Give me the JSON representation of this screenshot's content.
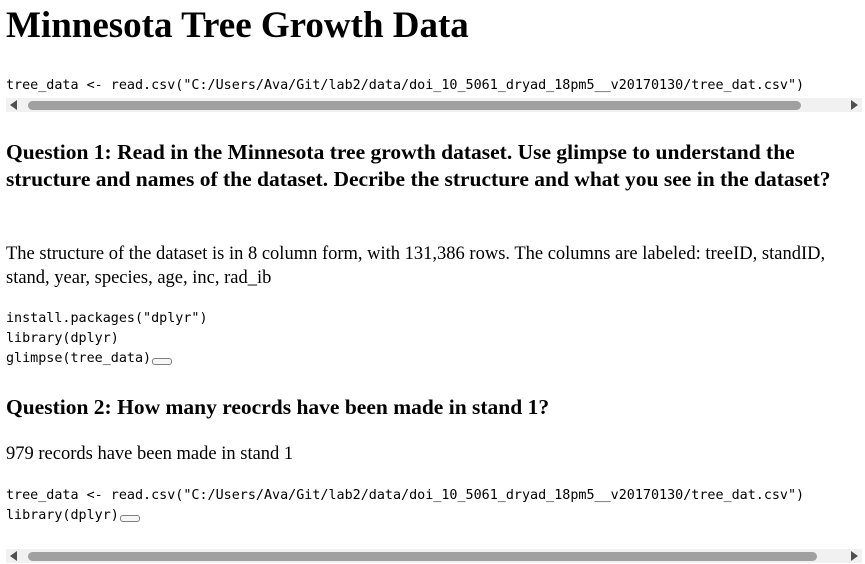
{
  "title": "Minnesota Tree Growth Data",
  "code1": {
    "line": "tree_data <- read.csv(\"C:/Users/Ava/Git/lab2/data/doi_10_5061_dryad_18pm5__v20170130/tree_dat.csv\")"
  },
  "question1": {
    "heading": "Question 1: Read in the Minnesota tree growth dataset. Use glimpse to understand the structure and names of the dataset. Decribe the structure and what you see in the dataset?",
    "answer": "The structure of the dataset is in 8 column form, with 131,386 rows. The columns are labeled: treeID, standID, stand, year, species, age, inc, rad_ib",
    "code": [
      "install.packages(\"dplyr\")",
      "library(dplyr)",
      "glimpse(tree_data)"
    ]
  },
  "question2": {
    "heading": "Question 2: How many reocrds have been made in stand 1?",
    "answer": "979 records have been made in stand 1",
    "code": [
      "tree_data <- read.csv(\"C:/Users/Ava/Git/lab2/data/doi_10_5061_dryad_18pm5__v20170130/tree_dat.csv\")",
      "",
      "library(dplyr)"
    ]
  },
  "icons": {
    "scroll_left": "chevron-left-icon",
    "scroll_right": "chevron-right-icon",
    "fold": "code-fold-icon"
  },
  "colors": {
    "text": "#000000",
    "scrollbar_track": "#f1f1f1",
    "scrollbar_thumb": "#a0a0a0",
    "scrollbar_arrow": "#505050"
  }
}
